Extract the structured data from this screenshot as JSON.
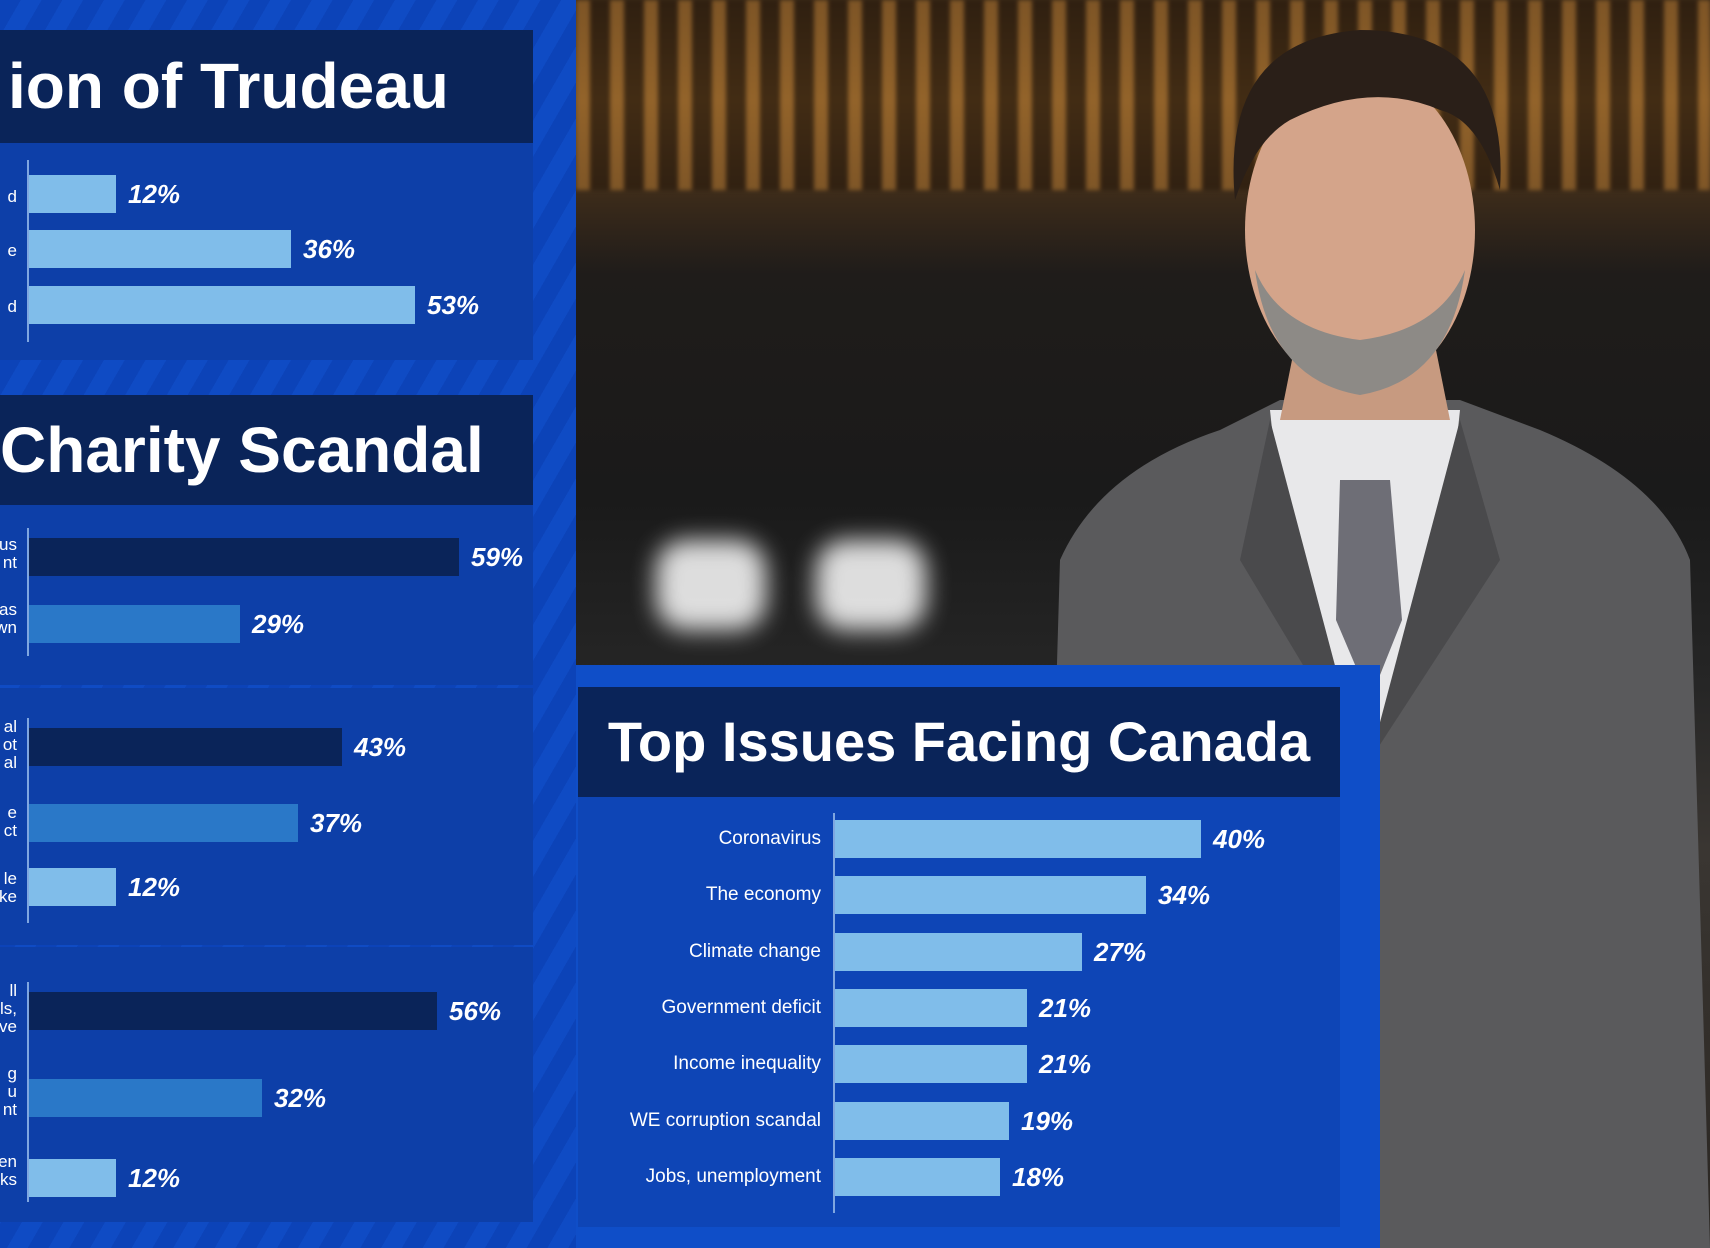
{
  "colors": {
    "bar_light": "#80bdea",
    "bar_mid": "#2a78c8",
    "bar_dark": "#0a2459",
    "title_bg": "#0a2459"
  },
  "panel1": {
    "title": "ion of Trudeau",
    "labels": [
      "d",
      "e",
      "d"
    ]
  },
  "panel2": {
    "title": "Charity Scandal",
    "labels": [
      "us",
      "nt",
      "as",
      "wn"
    ]
  },
  "panel3": {
    "labels": [
      "al",
      "ot",
      "al",
      "e",
      "ct",
      "le",
      "ke"
    ]
  },
  "panel4": {
    "labels": [
      "ll",
      "ls,",
      "ve",
      "g",
      "u",
      "nt",
      "en",
      "ks"
    ]
  },
  "image": {
    "subject": "man in grey suit speaking"
  },
  "chart_data": [
    {
      "type": "bar",
      "title": "ion of Trudeau",
      "categories": [
        "d",
        "e",
        "d"
      ],
      "values": [
        12,
        36,
        53
      ],
      "value_labels": [
        "12%",
        "36%",
        "53%"
      ],
      "colors": [
        "light",
        "light",
        "light"
      ],
      "xlim": [
        0,
        60
      ]
    },
    {
      "type": "bar",
      "title": "Charity Scandal",
      "categories": [
        "",
        ""
      ],
      "values": [
        59,
        29
      ],
      "value_labels": [
        "59%",
        "29%"
      ],
      "colors": [
        "dark",
        "mid"
      ],
      "xlim": [
        0,
        60
      ]
    },
    {
      "type": "bar",
      "title": "",
      "categories": [
        "",
        "",
        ""
      ],
      "values": [
        43,
        37,
        12
      ],
      "value_labels": [
        "43%",
        "37%",
        "12%"
      ],
      "colors": [
        "dark",
        "mid",
        "light"
      ],
      "xlim": [
        0,
        60
      ]
    },
    {
      "type": "bar",
      "title": "",
      "categories": [
        "",
        "",
        ""
      ],
      "values": [
        56,
        32,
        12
      ],
      "value_labels": [
        "56%",
        "32%",
        "12%"
      ],
      "colors": [
        "dark",
        "mid",
        "light"
      ],
      "xlim": [
        0,
        60
      ]
    },
    {
      "type": "bar",
      "title": "Top Issues Facing Canada",
      "categories": [
        "Coronavirus",
        "The economy",
        "Climate change",
        "Government deficit",
        "Income inequality",
        "WE corruption scandal",
        "Jobs, unemployment"
      ],
      "values": [
        40,
        34,
        27,
        21,
        21,
        19,
        18
      ],
      "value_labels": [
        "40%",
        "34%",
        "27%",
        "21%",
        "21%",
        "19%",
        "18%"
      ],
      "colors": [
        "light",
        "light",
        "light",
        "light",
        "light",
        "light",
        "light"
      ],
      "xlim": [
        0,
        40
      ]
    }
  ]
}
